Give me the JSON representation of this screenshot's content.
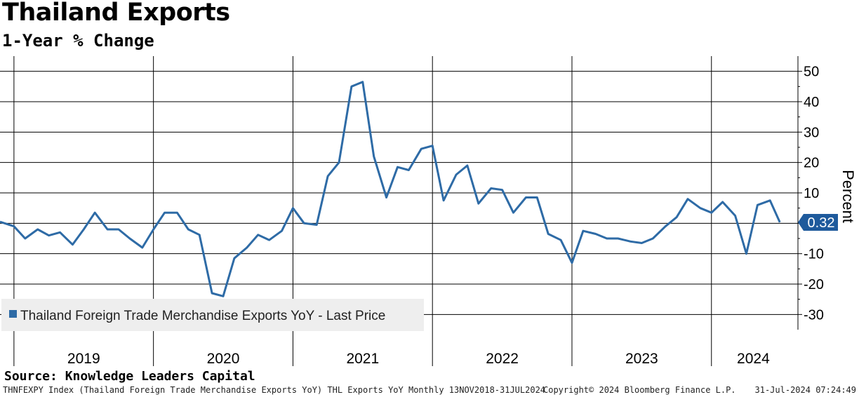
{
  "colors": {
    "line": "#2E6BA6",
    "grid": "#000000",
    "legend_bg": "#EEEEEE",
    "last_label_bg": "#1E5A9C"
  },
  "chart_data": {
    "type": "line",
    "title": "Thailand Exports",
    "subtitle": "1-Year % Change",
    "ylabel": "Percent",
    "ylim": [
      -35,
      55
    ],
    "yticks": [
      50,
      40,
      30,
      20,
      10,
      0,
      -10,
      -20,
      -30
    ],
    "ytick_labels": [
      "50",
      "40",
      "30",
      "20",
      "10",
      "",
      "-10",
      "-20",
      "-30"
    ],
    "x_range": [
      2018.9,
      2024.62
    ],
    "year_labels": [
      {
        "label": "2019",
        "pos": 2019.5
      },
      {
        "label": "2020",
        "pos": 2020.5
      },
      {
        "label": "2021",
        "pos": 2021.5
      },
      {
        "label": "2022",
        "pos": 2022.5
      },
      {
        "label": "2023",
        "pos": 2023.5
      },
      {
        "label": "2024",
        "pos": 2024.3
      }
    ],
    "year_boundaries": [
      2019,
      2020,
      2021,
      2022,
      2023,
      2024
    ],
    "series": [
      {
        "name": "Thailand Foreign Trade Merchandise Exports YoY - Last Price",
        "x": [
          2018.9,
          2019.0,
          2019.08,
          2019.17,
          2019.25,
          2019.33,
          2019.42,
          2019.5,
          2019.58,
          2019.67,
          2019.75,
          2019.83,
          2019.92,
          2020.0,
          2020.08,
          2020.17,
          2020.25,
          2020.33,
          2020.42,
          2020.5,
          2020.58,
          2020.67,
          2020.75,
          2020.83,
          2020.92,
          2021.0,
          2021.08,
          2021.17,
          2021.25,
          2021.33,
          2021.42,
          2021.5,
          2021.58,
          2021.67,
          2021.75,
          2021.83,
          2021.92,
          2022.0,
          2022.08,
          2022.17,
          2022.25,
          2022.33,
          2022.42,
          2022.5,
          2022.58,
          2022.67,
          2022.75,
          2022.83,
          2022.92,
          2023.0,
          2023.08,
          2023.17,
          2023.25,
          2023.33,
          2023.42,
          2023.5,
          2023.58,
          2023.67,
          2023.75,
          2023.83,
          2023.92,
          2024.0,
          2024.08,
          2024.17,
          2024.25,
          2024.33,
          2024.42,
          2024.49
        ],
        "values": [
          0.5,
          -1.0,
          -5.0,
          -2.0,
          -4.0,
          -3.0,
          -7.0,
          -2.0,
          3.5,
          -2.0,
          -2.0,
          -5.0,
          -8.0,
          -2.0,
          3.5,
          3.5,
          -2.0,
          -3.8,
          -23.0,
          -24.0,
          -11.5,
          -8.0,
          -3.8,
          -5.5,
          -2.5,
          5.0,
          0.0,
          -0.5,
          15.5,
          20.0,
          45.0,
          46.5,
          22.0,
          8.5,
          18.5,
          17.5,
          24.5,
          25.5,
          7.5,
          16.0,
          19.0,
          6.5,
          11.5,
          11.0,
          3.5,
          8.5,
          8.5,
          -3.5,
          -5.5,
          -13.0,
          -2.5,
          -3.5,
          -5.0,
          -5.0,
          -6.0,
          -6.5,
          -5.0,
          -1.0,
          2.0,
          8.0,
          5.0,
          3.5,
          7.0,
          2.5,
          -10.0,
          6.0,
          7.5,
          0.32
        ]
      }
    ],
    "last_value_label": "0.32",
    "legend": "Thailand Foreign Trade Merchandise Exports YoY - Last Price"
  },
  "source_label": "Source: Knowledge Leaders Capital",
  "footer": {
    "left": "THNFEXPY Index (Thailand Foreign Trade Merchandise Exports YoY) THL Exports YoY  Monthly 13NOV2018-31JUL2024",
    "center": "Copyright© 2024 Bloomberg Finance L.P.",
    "right": "31-Jul-2024 07:24:49"
  }
}
